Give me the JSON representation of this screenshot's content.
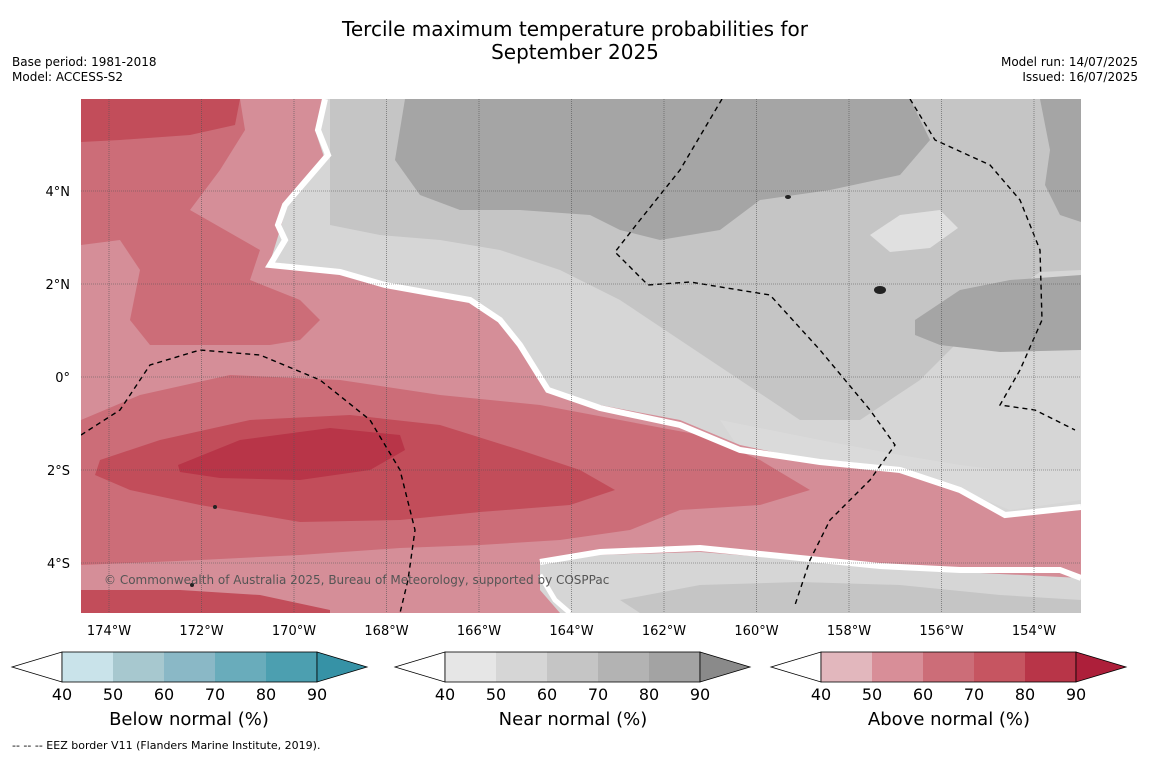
{
  "title_line1": "Tercile maximum temperature probabilities for",
  "title_line2": "September 2025",
  "base_period": "Base period: 1981-2018",
  "model": "Model: ACCESS-S2",
  "model_run": "Model run: 14/07/2025",
  "issued": "Issued: 16/07/2025",
  "copyright": "© Commonwealth of Australia 2025, Bureau of Meteorology, supported by COSPPac",
  "footnote": "--  --  -- EEZ border V11 (Flanders Marine Institute, 2019).",
  "map": {
    "lat_labels": [
      "4°N",
      "2°N",
      "0°",
      "2°S",
      "4°S"
    ],
    "lat_values": [
      4,
      2,
      0,
      -2,
      -4
    ],
    "lon_labels": [
      "174°W",
      "172°W",
      "170°W",
      "168°W",
      "166°W",
      "164°W",
      "162°W",
      "160°W",
      "158°W",
      "156°W",
      "154°W"
    ],
    "lon_values": [
      -174,
      -172,
      -170,
      -168,
      -166,
      -164,
      -162,
      -160,
      -158,
      -156,
      -154
    ]
  },
  "colorbars": [
    {
      "label": "Below normal (%)",
      "ticks": [
        "40",
        "50",
        "60",
        "70",
        "80",
        "90"
      ],
      "colors": [
        "#ffffff",
        "#c9e3ea",
        "#a7c8cf",
        "#8ab8c6",
        "#69acbb",
        "#4c9fb0",
        "#3692a6"
      ]
    },
    {
      "label": "Near normal (%)",
      "ticks": [
        "40",
        "50",
        "60",
        "70",
        "80",
        "90"
      ],
      "colors": [
        "#ffffff",
        "#e6e6e6",
        "#d6d6d6",
        "#c5c5c5",
        "#b3b3b3",
        "#a3a3a3",
        "#8a8a8a"
      ]
    },
    {
      "label": "Above normal (%)",
      "ticks": [
        "40",
        "50",
        "60",
        "70",
        "80",
        "90"
      ],
      "colors": [
        "#ffffff",
        "#e2b7bd",
        "#d88e98",
        "#cc6d78",
        "#c65561",
        "#b83548",
        "#ad1f3a"
      ]
    }
  ]
}
